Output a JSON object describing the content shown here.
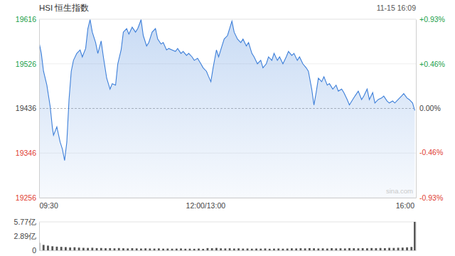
{
  "chart_data": [
    {
      "type": "area",
      "title": "HSI 恒生指数",
      "subtitle": "11-15 16:09",
      "annotations": [
        "sina.com"
      ],
      "color": "#3d7fd9",
      "grid": true,
      "x": [
        0,
        2,
        4,
        7,
        10,
        12,
        13,
        16,
        19,
        21,
        23,
        25,
        27,
        29,
        31,
        34,
        37,
        39,
        42,
        44,
        46,
        48,
        51,
        53,
        56,
        58,
        61,
        64,
        66,
        69,
        71,
        74,
        76,
        79,
        81,
        84,
        87,
        89,
        92,
        94,
        97,
        99,
        102,
        105,
        107,
        110,
        112,
        115,
        117,
        120,
        123,
        125,
        128,
        130,
        133,
        135,
        138,
        140,
        143,
        146,
        148,
        151,
        153,
        155,
        157,
        160,
        162,
        165,
        167,
        170,
        173,
        174,
        176,
        179,
        182,
        184,
        187,
        189,
        192,
        194,
        197,
        200,
        202,
        205,
        207,
        210,
        212,
        215,
        217,
        220,
        223,
        225,
        228,
        230,
        233,
        235,
        238,
        241,
        243,
        246,
        248,
        250,
        252,
        255,
        257,
        260,
        262,
        265,
        268,
        270,
        273,
        275,
        278,
        280,
        283,
        285,
        288,
        291,
        293,
        296,
        298,
        301,
        303,
        306,
        309,
        311,
        314,
        316,
        319,
        321,
        324,
        327,
        329,
        332,
        334,
        337,
        339
      ],
      "values": [
        19569,
        19547,
        19511,
        19483,
        19440,
        19397,
        19382,
        19399,
        19368,
        19354,
        19331,
        19368,
        19454,
        19511,
        19533,
        19547,
        19554,
        19540,
        19557,
        19597,
        19615,
        19590,
        19569,
        19547,
        19572,
        19540,
        19497,
        19475,
        19486,
        19483,
        19526,
        19554,
        19590,
        19597,
        19586,
        19600,
        19590,
        19597,
        19615,
        19583,
        19562,
        19569,
        19590,
        19597,
        19576,
        19566,
        19569,
        19554,
        19557,
        19554,
        19551,
        19557,
        19547,
        19551,
        19543,
        19547,
        19540,
        19533,
        19537,
        19526,
        19518,
        19511,
        19500,
        19490,
        19518,
        19554,
        19540,
        19562,
        19576,
        19583,
        19605,
        19612,
        19590,
        19576,
        19569,
        19576,
        19562,
        19569,
        19547,
        19540,
        19526,
        19533,
        19518,
        19526,
        19540,
        19533,
        19547,
        19533,
        19540,
        19526,
        19540,
        19551,
        19543,
        19547,
        19533,
        19540,
        19526,
        19518,
        19511,
        19475,
        19443,
        19468,
        19497,
        19490,
        19500,
        19483,
        19486,
        19475,
        19483,
        19471,
        19475,
        19468,
        19454,
        19443,
        19454,
        19461,
        19471,
        19454,
        19461,
        19475,
        19454,
        19468,
        19447,
        19454,
        19457,
        19461,
        19451,
        19447,
        19451,
        19447,
        19454,
        19461,
        19466,
        19457,
        19454,
        19447,
        19432
      ],
      "xlim": [
        0,
        340
      ],
      "xticks": [
        {
          "value": 0,
          "label": "09:30"
        },
        {
          "value": 150,
          "label": "12:00/13:00"
        },
        {
          "value": 330,
          "label": "16:00"
        }
      ],
      "ylim": [
        19256,
        19616
      ],
      "yticks": [
        19256,
        19346,
        19436,
        19526,
        19616
      ],
      "y2lim": [
        -0.93,
        0.93
      ],
      "y2ticks": [
        {
          "value": -0.93,
          "label": "-0.93%"
        },
        {
          "value": -0.46,
          "label": "-0.46%"
        },
        {
          "value": 0,
          "label": "0.00%"
        },
        {
          "value": 0.46,
          "label": "+0.46%"
        },
        {
          "value": 0.93,
          "label": "+0.93%"
        }
      ]
    },
    {
      "type": "bar",
      "color": "#555555",
      "tick_labels": "y",
      "x": [
        0,
        4,
        8,
        12,
        16,
        20,
        24,
        28,
        32,
        36,
        40,
        44,
        48,
        52,
        56,
        60,
        64,
        68,
        72,
        76,
        80,
        84,
        88,
        92,
        96,
        100,
        104,
        108,
        112,
        116,
        120,
        124,
        128,
        132,
        136,
        140,
        144,
        148,
        152,
        156,
        160,
        164,
        168,
        172,
        176,
        180,
        184,
        188,
        192,
        196,
        200,
        204,
        208,
        212,
        216,
        220,
        224,
        228,
        232,
        236,
        240,
        244,
        248,
        252,
        256,
        260,
        264,
        268,
        272,
        276,
        280,
        284,
        288,
        292,
        296,
        300,
        304,
        308,
        312,
        316,
        320,
        324,
        328,
        332,
        336,
        339
      ],
      "values": [
        1.52,
        1.1,
        0.95,
        0.82,
        0.74,
        0.7,
        0.65,
        0.58,
        0.62,
        0.55,
        0.5,
        0.48,
        0.52,
        0.45,
        0.47,
        0.42,
        0.44,
        0.4,
        0.46,
        0.41,
        0.38,
        0.43,
        0.39,
        0.36,
        0.4,
        0.37,
        0.35,
        0.39,
        0.34,
        0.36,
        0.33,
        0.35,
        0.38,
        0.32,
        0.34,
        0.31,
        0.36,
        0.3,
        0.45,
        0.42,
        0.48,
        0.4,
        0.38,
        0.41,
        0.36,
        0.39,
        0.35,
        0.37,
        0.33,
        0.36,
        0.34,
        0.38,
        0.32,
        0.35,
        0.37,
        0.33,
        0.36,
        0.4,
        0.38,
        0.42,
        0.39,
        0.44,
        0.41,
        0.37,
        0.4,
        0.36,
        0.43,
        0.39,
        0.41,
        0.38,
        0.45,
        0.42,
        0.4,
        0.44,
        0.41,
        0.46,
        0.43,
        0.47,
        0.44,
        0.5,
        0.48,
        0.52,
        0.55,
        0.6,
        0.68,
        5.77
      ],
      "xlim": [
        0,
        340
      ],
      "ylim": [
        0,
        5.77
      ],
      "yticks": [
        0,
        {
          "value": 2.89,
          "label": "2.89亿"
        },
        {
          "value": 5.77,
          "label": "5.77亿"
        }
      ]
    }
  ]
}
